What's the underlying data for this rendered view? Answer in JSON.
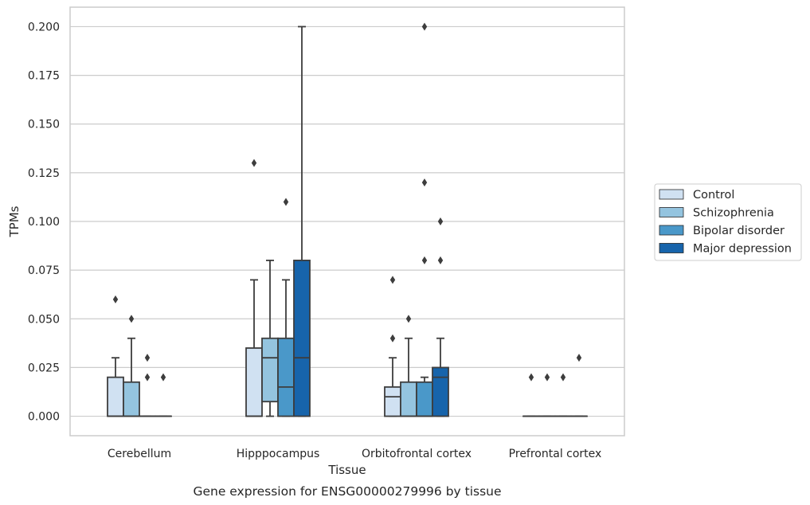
{
  "chart_data": {
    "type": "box",
    "caption": "Gene expression for ENSG00000279996 by tissue",
    "xlabel": "Tissue",
    "ylabel": "TPMs",
    "ylim": [
      -0.01,
      0.21
    ],
    "yticks": [
      "0.000",
      "0.025",
      "0.050",
      "0.075",
      "0.100",
      "0.125",
      "0.150",
      "0.175",
      "0.200"
    ],
    "ytick_values": [
      0,
      0.025,
      0.05,
      0.075,
      0.1,
      0.125,
      0.15,
      0.175,
      0.2
    ],
    "categories": [
      "Cerebellum",
      "Hipppocampus",
      "Orbitofrontal cortex",
      "Prefrontal cortex"
    ],
    "grid": "horizontal",
    "legend_position": "right",
    "series": [
      {
        "name": "Control",
        "color": "#d0e1f2",
        "boxes": [
          {
            "whislo": 0,
            "q1": 0,
            "med": 0,
            "q3": 0.02,
            "whishi": 0.03,
            "fliers": [
              0.06
            ]
          },
          {
            "whislo": 0,
            "q1": 0,
            "med": 0,
            "q3": 0.035,
            "whishi": 0.07,
            "fliers": [
              0.13
            ]
          },
          {
            "whislo": 0,
            "q1": 0,
            "med": 0.01,
            "q3": 0.015,
            "whishi": 0.03,
            "fliers": [
              0.04,
              0.07
            ]
          },
          {
            "whislo": 0,
            "q1": 0,
            "med": 0,
            "q3": 0,
            "whishi": 0,
            "fliers": [
              0.02
            ]
          }
        ]
      },
      {
        "name": "Schizophrenia",
        "color": "#94c4df",
        "boxes": [
          {
            "whislo": 0,
            "q1": 0,
            "med": 0,
            "q3": 0.0175,
            "whishi": 0.04,
            "fliers": [
              0.05
            ]
          },
          {
            "whislo": 0,
            "q1": 0.0075,
            "med": 0.03,
            "q3": 0.04,
            "whishi": 0.08,
            "fliers": []
          },
          {
            "whislo": 0,
            "q1": 0,
            "med": 0,
            "q3": 0.0175,
            "whishi": 0.04,
            "fliers": [
              0.05
            ]
          },
          {
            "whislo": 0,
            "q1": 0,
            "med": 0,
            "q3": 0,
            "whishi": 0,
            "fliers": [
              0.02
            ]
          }
        ]
      },
      {
        "name": "Bipolar disorder",
        "color": "#4a98c9",
        "boxes": [
          {
            "whislo": 0,
            "q1": 0,
            "med": 0,
            "q3": 0,
            "whishi": 0,
            "fliers": [
              0.02,
              0.03
            ]
          },
          {
            "whislo": 0,
            "q1": 0,
            "med": 0.015,
            "q3": 0.04,
            "whishi": 0.07,
            "fliers": [
              0.11
            ]
          },
          {
            "whislo": 0,
            "q1": 0,
            "med": 0,
            "q3": 0.0175,
            "whishi": 0.02,
            "fliers": [
              0.08,
              0.12,
              0.2
            ]
          },
          {
            "whislo": 0,
            "q1": 0,
            "med": 0,
            "q3": 0,
            "whishi": 0,
            "fliers": [
              0.02
            ]
          }
        ]
      },
      {
        "name": "Major depression",
        "color": "#1764ab",
        "boxes": [
          {
            "whislo": 0,
            "q1": 0,
            "med": 0,
            "q3": 0,
            "whishi": 0,
            "fliers": [
              0.02
            ]
          },
          {
            "whislo": 0,
            "q1": 0,
            "med": 0.03,
            "q3": 0.08,
            "whishi": 0.2,
            "fliers": []
          },
          {
            "whislo": 0,
            "q1": 0,
            "med": 0.02,
            "q3": 0.025,
            "whishi": 0.04,
            "fliers": [
              0.08,
              0.1
            ]
          },
          {
            "whislo": 0,
            "q1": 0,
            "med": 0,
            "q3": 0,
            "whishi": 0,
            "fliers": [
              0.03
            ]
          }
        ]
      }
    ]
  }
}
